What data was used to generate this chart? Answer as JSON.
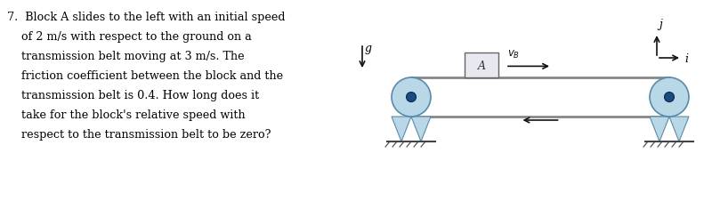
{
  "bg": "#ffffff",
  "text_color": "#000000",
  "pulley_fill": "#b8d8e8",
  "pulley_edge": "#5a8aaa",
  "hub_fill": "#1a4a80",
  "hub_edge": "#0a2a50",
  "support_fill": "#b8d8e8",
  "support_edge": "#5a8aaa",
  "belt_color": "#888888",
  "block_fill": "#e8e8f0",
  "block_edge": "#666666",
  "ground_color": "#444444",
  "arrow_color": "#111111",
  "text_fontsize": 9.2,
  "problem_text_line1": "7.  Block A",
  "problem_lines": [
    "7.  Block A slides to the left with an initial speed",
    "    of 2 m/s with respect to the ground on a",
    "    transmission belt moving at 3 m/s. The",
    "    friction coefficient between the block and the",
    "    transmission belt is 0.4. How long does it",
    "    take for the block's relative speed with",
    "    respect to the transmission belt to be zero?"
  ]
}
